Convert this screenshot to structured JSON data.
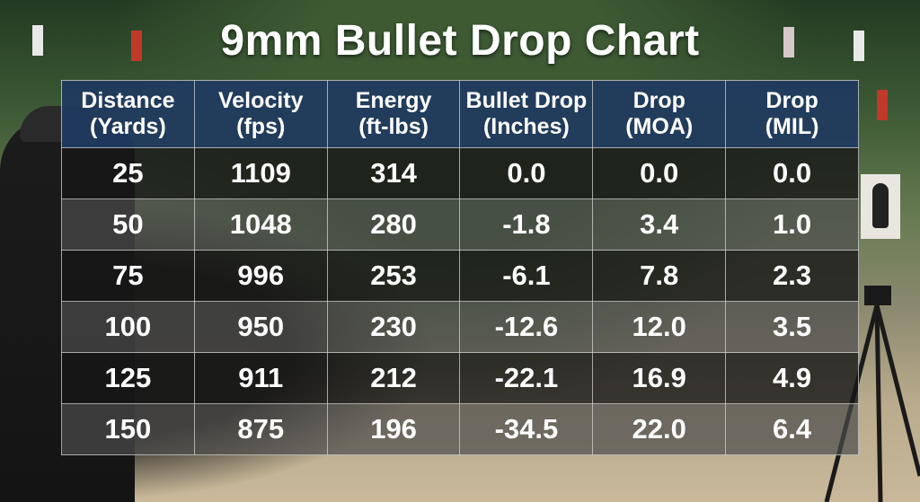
{
  "title": "9mm Bullet Drop Chart",
  "columns": [
    {
      "line1": "Distance",
      "line2": "(Yards)"
    },
    {
      "line1": "Velocity",
      "line2": "(fps)"
    },
    {
      "line1": "Energy",
      "line2": "(ft-lbs)"
    },
    {
      "line1": "Bullet Drop",
      "line2": "(Inches)"
    },
    {
      "line1": "Drop",
      "line2": "(MOA)"
    },
    {
      "line1": "Drop",
      "line2": "(MIL)"
    }
  ],
  "rows": [
    [
      "25",
      "1109",
      "314",
      "0.0",
      "0.0",
      "0.0"
    ],
    [
      "50",
      "1048",
      "280",
      "-1.8",
      "3.4",
      "1.0"
    ],
    [
      "75",
      "996",
      "253",
      "-6.1",
      "7.8",
      "2.3"
    ],
    [
      "100",
      "950",
      "230",
      "-12.6",
      "12.0",
      "3.5"
    ],
    [
      "125",
      "911",
      "212",
      "-22.1",
      "16.9",
      "4.9"
    ],
    [
      "150",
      "875",
      "196",
      "-34.5",
      "22.0",
      "6.4"
    ]
  ],
  "colors": {
    "header_bg": "#1f3a5f",
    "row_dark": "#161616",
    "row_light": "#4b4b4b",
    "text": "#ffffff"
  },
  "chart_data": {
    "type": "table",
    "title": "9mm Bullet Drop Chart",
    "columns": [
      "Distance (Yards)",
      "Velocity (fps)",
      "Energy (ft-lbs)",
      "Bullet Drop (Inches)",
      "Drop (MOA)",
      "Drop (MIL)"
    ],
    "rows": [
      [
        25,
        1109,
        314,
        0.0,
        0.0,
        0.0
      ],
      [
        50,
        1048,
        280,
        -1.8,
        3.4,
        1.0
      ],
      [
        75,
        996,
        253,
        -6.1,
        7.8,
        2.3
      ],
      [
        100,
        950,
        230,
        -12.6,
        12.0,
        3.5
      ],
      [
        125,
        911,
        212,
        -22.1,
        16.9,
        4.9
      ],
      [
        150,
        875,
        196,
        -34.5,
        22.0,
        6.4
      ]
    ]
  }
}
